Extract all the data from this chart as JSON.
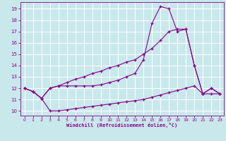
{
  "background_color": "#c8e8ec",
  "grid_color": "#b0d8dc",
  "line_color": "#880088",
  "xlabel": "Windchill (Refroidissement éolien,°C)",
  "xlim": [
    -0.5,
    23.5
  ],
  "ylim": [
    9.6,
    19.6
  ],
  "yticks": [
    10,
    11,
    12,
    13,
    14,
    15,
    16,
    17,
    18,
    19
  ],
  "xticks": [
    0,
    1,
    2,
    3,
    4,
    5,
    6,
    7,
    8,
    9,
    10,
    11,
    12,
    13,
    14,
    15,
    16,
    17,
    18,
    19,
    20,
    21,
    22,
    23
  ],
  "line1_x": [
    0,
    1,
    2,
    3,
    4,
    5,
    6,
    7,
    8,
    9,
    10,
    11,
    12,
    13,
    14,
    15,
    16,
    17,
    18,
    19,
    20,
    21,
    22,
    23
  ],
  "line1_y": [
    12.0,
    11.7,
    11.1,
    10.0,
    10.0,
    10.1,
    10.2,
    10.3,
    10.4,
    10.5,
    10.6,
    10.7,
    10.8,
    10.9,
    11.0,
    11.2,
    11.4,
    11.6,
    11.8,
    12.0,
    12.2,
    11.5,
    11.5,
    11.5
  ],
  "line2_x": [
    0,
    1,
    2,
    3,
    4,
    5,
    6,
    7,
    8,
    9,
    10,
    11,
    12,
    13,
    14,
    15,
    16,
    17,
    18,
    19,
    20,
    21,
    22,
    23
  ],
  "line2_y": [
    12.0,
    11.7,
    11.1,
    12.0,
    12.2,
    12.2,
    12.2,
    12.2,
    12.2,
    12.3,
    12.5,
    12.7,
    13.0,
    13.3,
    14.5,
    17.7,
    19.2,
    19.0,
    17.0,
    17.2,
    14.0,
    11.5,
    12.0,
    11.5
  ],
  "line3_x": [
    0,
    1,
    2,
    3,
    4,
    5,
    6,
    7,
    8,
    9,
    10,
    11,
    12,
    13,
    14,
    15,
    16,
    17,
    18,
    19,
    20,
    21,
    22,
    23
  ],
  "line3_y": [
    12.0,
    11.7,
    11.1,
    12.0,
    12.2,
    12.5,
    12.8,
    13.0,
    13.3,
    13.5,
    13.8,
    14.0,
    14.3,
    14.5,
    15.0,
    15.5,
    16.2,
    17.0,
    17.2,
    17.2,
    14.0,
    11.5,
    12.0,
    11.5
  ]
}
